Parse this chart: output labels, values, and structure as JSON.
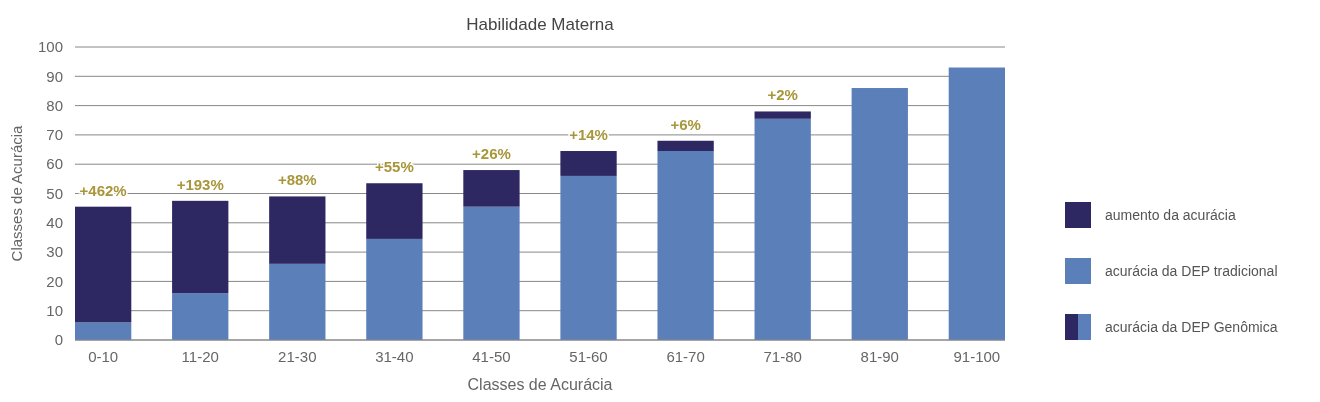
{
  "chart_data": {
    "type": "bar",
    "title": "Habilidade Materna",
    "xlabel": "Classes de Acurácia",
    "ylabel": "Classes de Acurácia",
    "categories": [
      "0-10",
      "11-20",
      "21-30",
      "31-40",
      "41-50",
      "51-60",
      "61-70",
      "71-80",
      "81-90",
      "91-100"
    ],
    "stacked": true,
    "series": [
      {
        "name": "acurácia da DEP tradicional",
        "color": "#5b7fb9",
        "values": [
          6,
          16,
          26,
          34.5,
          45.5,
          56,
          64.5,
          75.5,
          86,
          93
        ]
      },
      {
        "name": "aumento da acurácia",
        "color": "#2e2862",
        "values": [
          39.5,
          31.5,
          23,
          19,
          12.5,
          8.5,
          3.5,
          2.5,
          null,
          null
        ]
      }
    ],
    "ylim": [
      0,
      100
    ],
    "yticks": [
      0,
      10,
      20,
      30,
      40,
      50,
      60,
      70,
      80,
      90,
      100
    ],
    "grid": "y",
    "legend": "right",
    "annotations": [
      {
        "text": "+462%",
        "x": "0-10",
        "y": 45.5
      },
      {
        "text": "+193%",
        "x": "11-20",
        "y": 47.5
      },
      {
        "text": "+88%",
        "x": "21-30",
        "y": 49
      },
      {
        "text": "+55%",
        "x": "31-40",
        "y": 53.5
      },
      {
        "text": "+26%",
        "x": "41-50",
        "y": 58
      },
      {
        "text": "+14%",
        "x": "51-60",
        "y": 64.5
      },
      {
        "text": "+6%",
        "x": "61-70",
        "y": 68
      },
      {
        "text": "+2%",
        "x": "71-80",
        "y": 78
      },
      "acurácia da DEP Genômica"
    ]
  }
}
